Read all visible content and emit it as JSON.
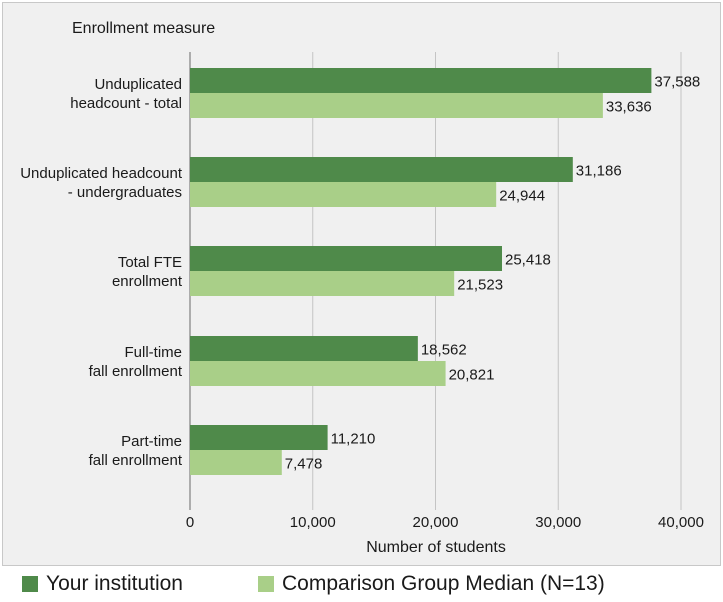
{
  "chart_data": {
    "type": "bar",
    "orientation": "horizontal",
    "title": "Enrollment measure",
    "xlabel": "Number of students",
    "xlim": [
      0,
      40000
    ],
    "xticks": [
      0,
      10000,
      20000,
      30000,
      40000
    ],
    "xtick_labels": [
      "0",
      "10,000",
      "20,000",
      "30,000",
      "40,000"
    ],
    "grid": true,
    "legend_position": "bottom",
    "categories": [
      [
        "Unduplicated",
        "headcount - total"
      ],
      [
        "Unduplicated headcount",
        "- undergraduates"
      ],
      [
        "Total FTE",
        "enrollment"
      ],
      [
        "Full-time",
        "fall enrollment"
      ],
      [
        "Part-time",
        "fall enrollment"
      ]
    ],
    "series": [
      {
        "name": "Your institution",
        "color": "#4f8a4a",
        "values": [
          37588,
          31186,
          25418,
          18562,
          11210
        ],
        "labels": [
          "37,588",
          "31,186",
          "25,418",
          "18,562",
          "11,210"
        ]
      },
      {
        "name": "Comparison Group Median (N=13)",
        "color": "#a9cf88",
        "values": [
          33636,
          24944,
          21523,
          20821,
          7478
        ],
        "labels": [
          "33,636",
          "24,944",
          "21,523",
          "20,821",
          "7,478"
        ]
      }
    ]
  }
}
